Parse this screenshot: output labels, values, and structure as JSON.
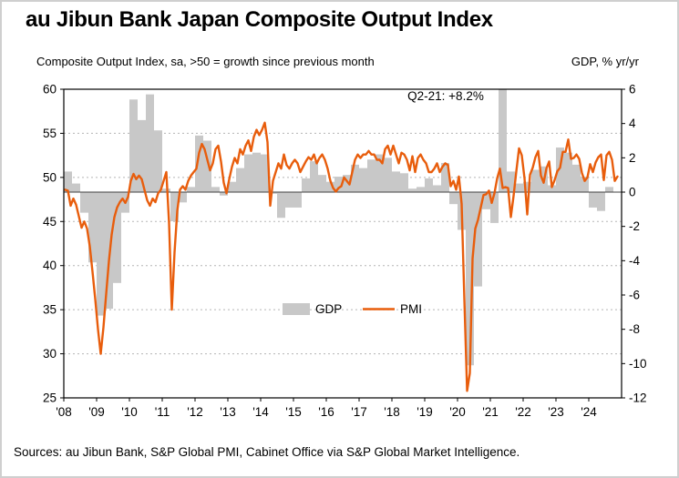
{
  "page": {
    "title": "au Jibun Bank Japan Composite Output Index",
    "subtitle_left": "Composite Output Index, sa, >50 = growth since previous month",
    "subtitle_right": "GDP, % yr/yr",
    "source_note": "Sources: au Jibun Bank, S&P Global PMI, Cabinet Office via S&P Global Market Intelligence."
  },
  "colors": {
    "bar": "#c8c8c8",
    "line": "#e85d0c",
    "grid": "#b5b5b5",
    "frame": "#000000",
    "zero_line": "#404040",
    "text": "#000000"
  },
  "chart_data": {
    "type": "combo_bar_line",
    "title": "au Jibun Bank Japan Composite Output Index",
    "left_axis": {
      "label": "Composite Output Index, sa, >50 = growth since previous month",
      "min": 25,
      "max": 60,
      "ticks": [
        60,
        55,
        50,
        45,
        40,
        35,
        30,
        25
      ]
    },
    "right_axis": {
      "label": "GDP, % yr/yr",
      "min": -12,
      "max": 6,
      "ticks": [
        6,
        4,
        2,
        0,
        -2,
        -4,
        -6,
        -8,
        -10,
        -12
      ]
    },
    "x_axis": {
      "min_year": 2008,
      "max_year": 2025,
      "tick_labels": [
        "'08",
        "'09",
        "'10",
        "'11",
        "'12",
        "'13",
        "'14",
        "'15",
        "'16",
        "'17",
        "'18",
        "'19",
        "'20",
        "'21",
        "'22",
        "'23",
        "'24"
      ]
    },
    "annotation": {
      "text": "Q2-21: +8.2%"
    },
    "legend": [
      {
        "label": "GDP",
        "swatch": "bar"
      },
      {
        "label": "PMI",
        "swatch": "line"
      }
    ],
    "grid": "dotted-horizontal",
    "series": [
      {
        "name": "GDP",
        "type": "bar",
        "axis": "right",
        "frequency": "quarterly",
        "start": "2008-Q1",
        "values": [
          1.2,
          0.5,
          -1.2,
          -4.1,
          -7.2,
          -6.8,
          -5.3,
          -1.2,
          5.4,
          4.2,
          5.7,
          3.6,
          0.2,
          -1.7,
          -0.6,
          0.3,
          3.3,
          3.0,
          0.3,
          -0.2,
          0.6,
          1.4,
          2.2,
          2.3,
          2.2,
          -0.1,
          -1.5,
          -0.9,
          -0.9,
          0.8,
          1.8,
          1.0,
          0.6,
          0.9,
          1.0,
          1.6,
          1.4,
          1.9,
          2.2,
          2.0,
          1.2,
          1.1,
          0.2,
          0.3,
          0.8,
          0.4,
          1.7,
          -0.7,
          -2.2,
          -10.1,
          -5.5,
          -1.0,
          -1.8,
          8.2,
          1.2,
          0.5,
          0.6,
          1.3,
          1.5,
          0.4,
          2.6,
          2.3,
          1.6,
          0.9,
          -0.9,
          -1.1,
          0.3
        ]
      },
      {
        "name": "PMI",
        "type": "line",
        "axis": "left",
        "frequency": "monthly",
        "start": "2008-01",
        "values": [
          48.6,
          48.5,
          46.8,
          47.6,
          46.9,
          45.6,
          44.3,
          45.0,
          44.2,
          42.2,
          39.3,
          36.2,
          32.8,
          30.0,
          33.0,
          36.8,
          40.5,
          43.5,
          45.5,
          46.6,
          47.2,
          47.6,
          47.1,
          47.8,
          49.6,
          50.4,
          49.8,
          50.2,
          49.8,
          48.6,
          47.4,
          46.8,
          47.6,
          47.2,
          48.2,
          48.6,
          49.6,
          50.6,
          44.8,
          35.0,
          41.5,
          46.2,
          48.6,
          49.0,
          48.6,
          49.6,
          50.2,
          50.6,
          51.0,
          52.8,
          53.8,
          53.2,
          52.0,
          50.8,
          51.6,
          53.2,
          53.6,
          51.8,
          49.4,
          48.2,
          49.8,
          51.2,
          52.2,
          51.6,
          53.2,
          52.6,
          53.6,
          54.2,
          53.0,
          54.6,
          55.4,
          54.8,
          55.4,
          56.2,
          54.0,
          46.8,
          49.6,
          50.6,
          51.6,
          51.0,
          52.6,
          51.4,
          51.0,
          51.6,
          52.0,
          51.6,
          50.6,
          51.2,
          51.8,
          52.3,
          52.0,
          52.6,
          51.6,
          52.2,
          52.6,
          52.0,
          51.0,
          49.6,
          48.8,
          48.4,
          48.8,
          49.0,
          50.0,
          49.6,
          49.2,
          50.6,
          52.0,
          52.6,
          52.2,
          52.6,
          52.6,
          53.0,
          52.6,
          52.6,
          52.0,
          52.0,
          51.6,
          53.2,
          53.6,
          52.6,
          53.6,
          52.6,
          51.6,
          52.8,
          52.6,
          52.0,
          50.8,
          52.4,
          50.6,
          52.2,
          52.6,
          52.0,
          51.6,
          50.6,
          50.6,
          51.0,
          51.6,
          50.6,
          51.2,
          51.6,
          51.4,
          49.0,
          49.6,
          48.6,
          50.1,
          47.0,
          36.2,
          25.8,
          27.8,
          40.8,
          44.2,
          45.2,
          46.6,
          48.0,
          48.1,
          48.5,
          47.1,
          48.2,
          49.9,
          51.0,
          48.8,
          48.9,
          48.8,
          45.5,
          47.9,
          50.7,
          53.3,
          52.5,
          49.9,
          45.8,
          50.3,
          51.1,
          52.3,
          53.0,
          50.2,
          49.4,
          51.0,
          51.8,
          48.9,
          49.7,
          50.7,
          51.1,
          52.9,
          52.9,
          54.3,
          52.1,
          52.2,
          52.6,
          52.1,
          50.5,
          49.6,
          50.0,
          51.5,
          50.6,
          51.7,
          52.3,
          52.6,
          49.7,
          52.5,
          52.9,
          52.0,
          49.6,
          50.1
        ]
      }
    ]
  }
}
